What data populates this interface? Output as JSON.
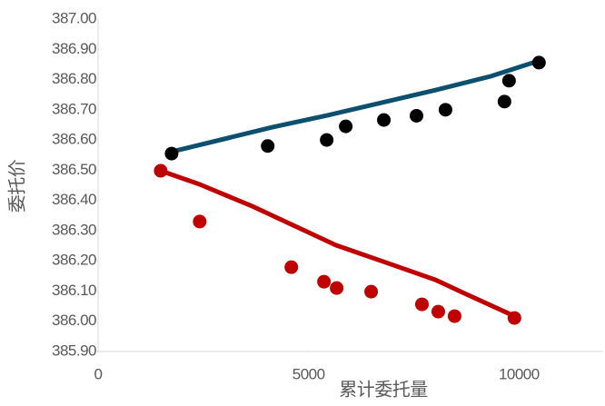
{
  "chart_data": {
    "type": "scatter",
    "x_label": "累计委托量",
    "y_label": "委托价",
    "xlim": [
      0,
      12000
    ],
    "xticks": [
      0,
      5000,
      10000
    ],
    "ylim": [
      385.9,
      387.0
    ],
    "yticks": [
      {
        "value": 385.9,
        "label": "385.90"
      },
      {
        "value": 386.0,
        "label": "386.00"
      },
      {
        "value": 386.1,
        "label": "386.10"
      },
      {
        "value": 386.2,
        "label": "386.20"
      },
      {
        "value": 386.3,
        "label": "386.30"
      },
      {
        "value": 386.4,
        "label": "386.40"
      },
      {
        "value": 386.5,
        "label": "386.50"
      },
      {
        "value": 386.6,
        "label": "386.60"
      },
      {
        "value": 386.7,
        "label": "386.70"
      },
      {
        "value": 386.8,
        "label": "386.80"
      },
      {
        "value": 386.9,
        "label": "386.90"
      },
      {
        "value": 387.0,
        "label": "387.00"
      }
    ],
    "grid": false,
    "series": [
      {
        "kind": "line",
        "color": "#0d4f6e",
        "x": [
          1746,
          4138,
          5431,
          6724,
          8017,
          9310,
          10474
        ],
        "values": [
          386.561,
          386.642,
          386.681,
          386.723,
          386.765,
          386.81,
          386.862
        ]
      },
      {
        "kind": "line",
        "color": "#c00000",
        "x": [
          1487,
          2414,
          3707,
          5000,
          5647,
          6724,
          8017,
          8664,
          9892
        ],
        "values": [
          386.498,
          386.453,
          386.378,
          386.294,
          386.252,
          386.2,
          386.137,
          386.095,
          386.017
        ]
      },
      {
        "kind": "points",
        "color": "#000000",
        "x": [
          1746,
          4030,
          5431,
          5884,
          6789,
          7565,
          8254,
          9655,
          9763,
          10474
        ],
        "values": [
          386.555,
          386.58,
          386.6,
          386.645,
          386.666,
          386.68,
          386.7,
          386.727,
          386.796,
          386.856
        ]
      },
      {
        "kind": "points",
        "color": "#c00000",
        "x": [
          1487,
          2414,
          4591,
          5366,
          5668,
          6487,
          7694,
          8082,
          8470,
          9892
        ],
        "values": [
          386.498,
          386.33,
          386.179,
          386.131,
          386.11,
          386.098,
          386.056,
          386.032,
          386.017,
          386.011
        ]
      }
    ]
  }
}
